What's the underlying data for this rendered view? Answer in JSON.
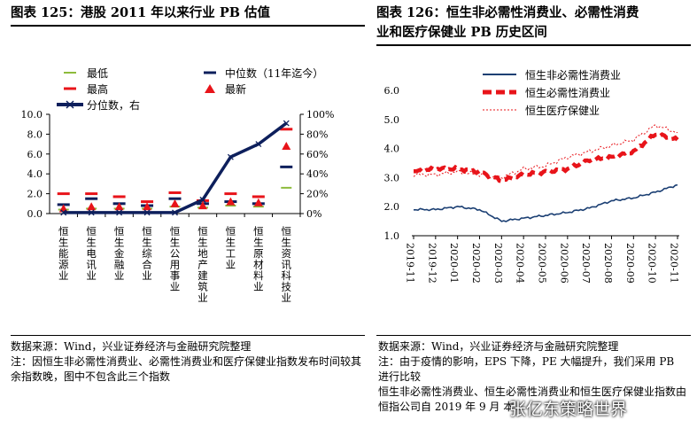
{
  "left": {
    "title": "图表 125：港股 2011 年以来行业 PB 估值",
    "notes": {
      "source": "数据来源：Wind，兴业证券经济与金融研究院整理",
      "note": "注：因恒生非必需性消费业、必需性消费业和医疗保健业指数发布时间较其余指数晚，图中不包含此三个指数"
    }
  },
  "right": {
    "title_line1": "图表 126：恒生非必需性消费业、必需性消费",
    "title_line2": "业和医疗保健业 PB 历史区间",
    "notes": {
      "source": "数据来源：Wind，兴业证券经济与金融研究院整理",
      "note": "注：由于疫情的影响，EPS 下降，PE 大幅提升，我们采用 PB 进行比较",
      "extra": "恒生非必需性消费业、恒生必需性消费业和恒生医疗保健业指数由恒指公司自 2019 年 9 月 本"
    }
  },
  "watermark": "张亿东策略世界",
  "colors": {
    "navy": "#0d1f5c",
    "red": "#e8141a",
    "green": "#8dbb3c",
    "blue": "#1b3f73"
  },
  "chart_data": [
    {
      "type": "bar",
      "title": "港股 2011 年以来行业 PB 估值",
      "categories": [
        "恒生能源业",
        "恒生电讯业",
        "恒生金融业",
        "恒生综合业",
        "恒生公用事业",
        "恒生地产建筑业",
        "恒生工业",
        "恒生原材料业",
        "恒生资讯科技业"
      ],
      "legend": [
        "最低",
        "中位数（11年迄今）",
        "最高",
        "最新",
        "分位数，右"
      ],
      "series": [
        {
          "name": "最低",
          "values": [
            0.4,
            0.5,
            0.5,
            0.5,
            0.7,
            0.6,
            0.8,
            0.7,
            2.6
          ]
        },
        {
          "name": "中位数（11年迄今）",
          "values": [
            0.9,
            1.5,
            1.0,
            0.8,
            1.5,
            1.0,
            1.2,
            1.0,
            4.7
          ]
        },
        {
          "name": "最高",
          "values": [
            2.0,
            2.0,
            1.7,
            1.2,
            2.1,
            1.3,
            2.0,
            1.7,
            8.5
          ]
        },
        {
          "name": "最新",
          "values": [
            0.4,
            0.6,
            0.6,
            0.6,
            0.9,
            0.7,
            1.1,
            1.0,
            6.7
          ]
        },
        {
          "name": "分位数，右",
          "values": [
            1,
            1,
            1,
            1,
            1,
            14,
            57,
            70,
            91
          ]
        }
      ],
      "ylim": [
        0,
        10
      ],
      "yticks": [
        "0.0",
        "2.0",
        "4.0",
        "6.0",
        "8.0",
        "10.0"
      ],
      "y2lim": [
        0,
        100
      ],
      "y2ticks": [
        "0%",
        "20%",
        "40%",
        "60%",
        "80%",
        "100%"
      ]
    },
    {
      "type": "line",
      "title": "恒生非必需性消费业、必需性消费业和医疗保健业 PB 历史区间",
      "x": [
        "2019-11",
        "2019-12",
        "2020-01",
        "2020-02",
        "2020-03",
        "2020-04",
        "2020-05",
        "2020-06",
        "2020-07",
        "2020-08",
        "2020-09",
        "2020-10",
        "2020-11"
      ],
      "ylim": [
        1,
        6
      ],
      "yticks": [
        "1.0",
        "2.0",
        "3.0",
        "4.0",
        "5.0",
        "6.0"
      ],
      "series": [
        {
          "name": "恒生非必需性消费业",
          "values": [
            1.9,
            1.9,
            2.0,
            1.9,
            1.5,
            1.6,
            1.7,
            1.8,
            1.95,
            2.2,
            2.3,
            2.5,
            2.75
          ]
        },
        {
          "name": "恒生必需性消费业",
          "values": [
            3.2,
            3.3,
            3.3,
            3.2,
            2.9,
            3.1,
            3.2,
            3.3,
            3.6,
            3.7,
            3.9,
            4.5,
            4.3
          ]
        },
        {
          "name": "恒生医疗保健业",
          "values": [
            3.1,
            3.1,
            3.2,
            3.1,
            3.0,
            3.3,
            3.4,
            3.7,
            3.9,
            4.1,
            4.3,
            4.8,
            4.55
          ]
        }
      ]
    }
  ]
}
